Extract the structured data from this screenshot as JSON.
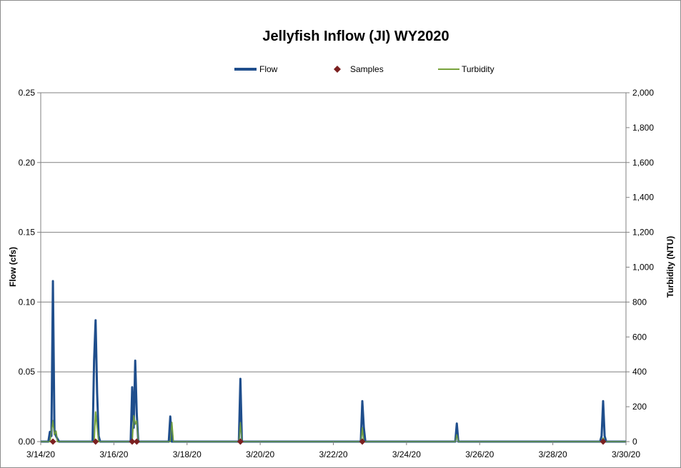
{
  "chart_data": {
    "type": "line",
    "title": "Jellyfish Inflow (JI) WY2020",
    "ylabel": "Flow (cfs)",
    "y2label": "Turbidity (NTU)",
    "xlabel": "",
    "ylim": [
      0,
      0.25
    ],
    "y2lim": [
      0,
      2000
    ],
    "x_range": [
      "3/14/20",
      "3/30/20"
    ],
    "grid": true,
    "legend_placement": "top",
    "x_ticks": [
      "3/14/20",
      "3/16/20",
      "3/18/20",
      "3/20/20",
      "3/22/20",
      "3/24/20",
      "3/26/20",
      "3/28/20",
      "3/30/20"
    ],
    "y_ticks": [
      "0.00",
      "0.05",
      "0.10",
      "0.15",
      "0.20",
      "0.25"
    ],
    "y2_ticks": [
      "0",
      "200",
      "400",
      "600",
      "800",
      "1,000",
      "1,200",
      "1,400",
      "1,600",
      "1,800",
      "2,000"
    ],
    "series": [
      {
        "name": "Flow",
        "type": "line",
        "axis": "left",
        "color": "#1f4e8c",
        "points": [
          [
            "3/14/20 00:00",
            0
          ],
          [
            "3/14/20 05:00",
            0
          ],
          [
            "3/14/20 06:00",
            0.007
          ],
          [
            "3/14/20 07:00",
            0.004
          ],
          [
            "3/14/20 08:00",
            0.115
          ],
          [
            "3/14/20 09:00",
            0.008
          ],
          [
            "3/14/20 10:00",
            0.004
          ],
          [
            "3/14/20 12:00",
            0
          ],
          [
            "3/15/20 10:00",
            0
          ],
          [
            "3/15/20 11:00",
            0.058
          ],
          [
            "3/15/20 12:00",
            0.087
          ],
          [
            "3/15/20 13:00",
            0.035
          ],
          [
            "3/15/20 14:00",
            0.004
          ],
          [
            "3/15/20 15:00",
            0
          ],
          [
            "3/16/20 11:00",
            0
          ],
          [
            "3/16/20 12:00",
            0.039
          ],
          [
            "3/16/20 13:00",
            0.01
          ],
          [
            "3/16/20 14:00",
            0.058
          ],
          [
            "3/16/20 15:00",
            0.02
          ],
          [
            "3/16/20 16:00",
            0
          ],
          [
            "3/17/20 12:00",
            0
          ],
          [
            "3/17/20 13:00",
            0.018
          ],
          [
            "3/17/20 14:00",
            0
          ],
          [
            "3/19/20 10:00",
            0
          ],
          [
            "3/19/20 11:00",
            0.045
          ],
          [
            "3/19/20 12:00",
            0
          ],
          [
            "3/22/20 18:00",
            0
          ],
          [
            "3/22/20 19:00",
            0.029
          ],
          [
            "3/22/20 20:00",
            0.01
          ],
          [
            "3/22/20 21:00",
            0
          ],
          [
            "3/25/20 08:00",
            0
          ],
          [
            "3/25/20 09:00",
            0.013
          ],
          [
            "3/25/20 10:00",
            0
          ],
          [
            "3/29/20 07:00",
            0
          ],
          [
            "3/29/20 08:00",
            0.004
          ],
          [
            "3/29/20 09:00",
            0.029
          ],
          [
            "3/29/20 10:00",
            0.004
          ],
          [
            "3/29/20 11:00",
            0
          ],
          [
            "3/30/20 00:00",
            0
          ]
        ]
      },
      {
        "name": "Samples",
        "type": "scatter",
        "axis": "left",
        "color": "#7b2020",
        "points": [
          [
            "3/14/20 08:00",
            0
          ],
          [
            "3/15/20 12:00",
            0
          ],
          [
            "3/16/20 12:00",
            0
          ],
          [
            "3/16/20 15:00",
            0
          ],
          [
            "3/19/20 11:00",
            0
          ],
          [
            "3/22/20 19:00",
            0
          ],
          [
            "3/29/20 09:00",
            0
          ]
        ]
      },
      {
        "name": "Turbidity",
        "type": "line",
        "axis": "right",
        "color": "#77a33b",
        "points": [
          [
            "3/14/20 00:00",
            0
          ],
          [
            "3/14/20 06:00",
            0
          ],
          [
            "3/14/20 07:00",
            60
          ],
          [
            "3/14/20 08:00",
            120
          ],
          [
            "3/14/20 09:00",
            40
          ],
          [
            "3/14/20 10:00",
            60
          ],
          [
            "3/14/20 11:00",
            0
          ],
          [
            "3/15/20 11:00",
            0
          ],
          [
            "3/15/20 12:00",
            170
          ],
          [
            "3/15/20 13:00",
            90
          ],
          [
            "3/15/20 14:00",
            0
          ],
          [
            "3/16/20 12:00",
            0
          ],
          [
            "3/16/20 13:00",
            150
          ],
          [
            "3/16/20 14:00",
            100
          ],
          [
            "3/16/20 15:00",
            120
          ],
          [
            "3/16/20 16:00",
            0
          ],
          [
            "3/17/20 13:00",
            0
          ],
          [
            "3/17/20 14:00",
            110
          ],
          [
            "3/17/20 15:00",
            0
          ],
          [
            "3/19/20 10:00",
            0
          ],
          [
            "3/19/20 11:00",
            110
          ],
          [
            "3/19/20 12:00",
            0
          ],
          [
            "3/22/20 18:00",
            0
          ],
          [
            "3/22/20 19:00",
            80
          ],
          [
            "3/22/20 20:00",
            0
          ],
          [
            "3/25/20 08:00",
            0
          ],
          [
            "3/25/20 09:00",
            40
          ],
          [
            "3/25/20 10:00",
            0
          ],
          [
            "3/29/20 08:00",
            0
          ],
          [
            "3/29/20 09:00",
            20
          ],
          [
            "3/29/20 10:00",
            0
          ],
          [
            "3/30/20 00:00",
            0
          ]
        ]
      }
    ]
  }
}
